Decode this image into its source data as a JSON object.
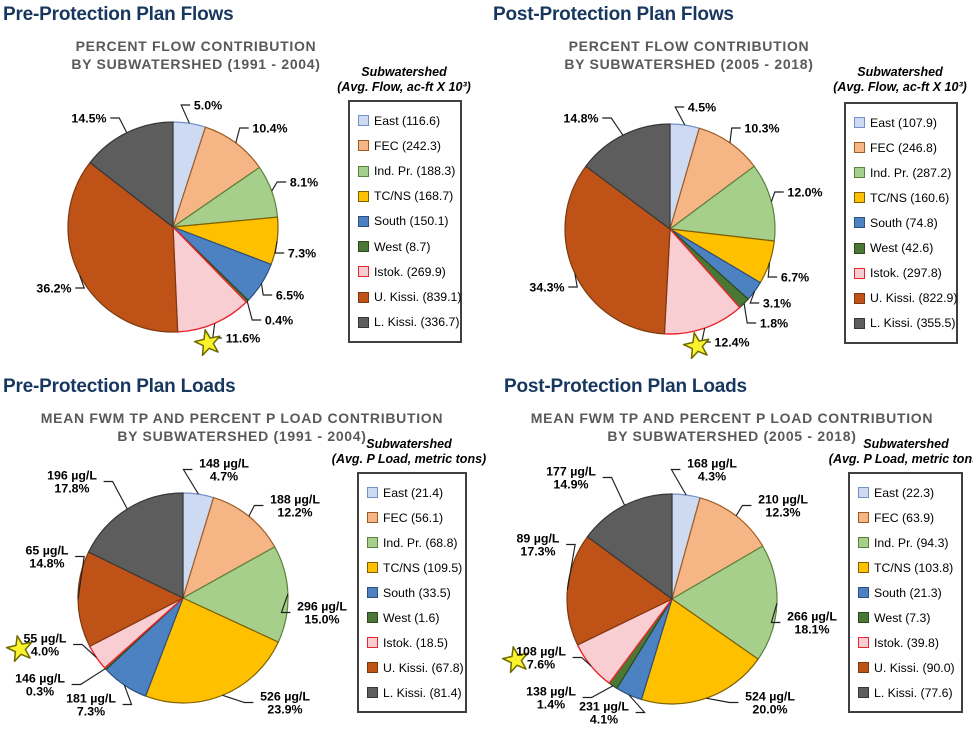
{
  "colors": {
    "background": "#FFFFFF",
    "heading": "#17375E",
    "chart_title": "#595959",
    "data_label": "#000000",
    "leader_line": "#1F1F1F",
    "legend_border": "#3F3F3F",
    "star": {
      "fill": "#FBF22E",
      "stroke": "#6E6A00"
    },
    "palette": {
      "East": {
        "fill": "#CDDAF2",
        "stroke": "#7490C9"
      },
      "FEC": {
        "fill": "#F5B585",
        "stroke": "#9E5B21"
      },
      "Ind. Pr.": {
        "fill": "#A7CF8C",
        "stroke": "#5A8239"
      },
      "TC/NS": {
        "fill": "#FFC000",
        "stroke": "#7F6000"
      },
      "South": {
        "fill": "#4C81C2",
        "stroke": "#2D4E7E"
      },
      "West": {
        "fill": "#4B7735",
        "stroke": "#2C4A1D"
      },
      "Istok.": {
        "fill": "#F9CED2",
        "stroke": "#E8262B"
      },
      "U. Kissi.": {
        "fill": "#BF5317",
        "stroke": "#7A3A10"
      },
      "L. Kissi.": {
        "fill": "#5D5D5D",
        "stroke": "#373737"
      }
    }
  },
  "chart_data": [
    {
      "type": "pie",
      "heading": "Pre-Protection Plan Flows",
      "title_lines": [
        "PERCENT FLOW CONTRIBUTION",
        "BY SUBWATERSHED (1991 - 2004)"
      ],
      "legend_title_lines": [
        "Subwatershed",
        "(Avg. Flow, ac-ft X 10³)"
      ],
      "legend_position": "right",
      "starred_slice": "Istok.",
      "slices": [
        {
          "name": "East",
          "legend_value": "116.6",
          "percent": 5.0,
          "label_lines": [
            "5.0%"
          ]
        },
        {
          "name": "FEC",
          "legend_value": "242.3",
          "percent": 10.4,
          "label_lines": [
            "10.4%"
          ]
        },
        {
          "name": "Ind. Pr.",
          "legend_value": "188.3",
          "percent": 8.1,
          "label_lines": [
            "8.1%"
          ]
        },
        {
          "name": "TC/NS",
          "legend_value": "168.7",
          "percent": 7.3,
          "label_lines": [
            "7.3%"
          ]
        },
        {
          "name": "South",
          "legend_value": "150.1",
          "percent": 6.5,
          "label_lines": [
            "6.5%"
          ]
        },
        {
          "name": "West",
          "legend_value": "8.7",
          "percent": 0.4,
          "label_lines": [
            "0.4%"
          ]
        },
        {
          "name": "Istok.",
          "legend_value": "269.9",
          "percent": 11.6,
          "label_lines": [
            "11.6%"
          ]
        },
        {
          "name": "U. Kissi.",
          "legend_value": "839.1",
          "percent": 36.2,
          "label_lines": [
            "36.2%"
          ]
        },
        {
          "name": "L. Kissi.",
          "legend_value": "336.7",
          "percent": 14.5,
          "label_lines": [
            "14.5%"
          ]
        }
      ]
    },
    {
      "type": "pie",
      "heading": "Post-Protection Plan Flows",
      "title_lines": [
        "PERCENT FLOW CONTRIBUTION",
        "BY SUBWATERSHED (2005 - 2018)"
      ],
      "legend_title_lines": [
        "Subwatershed",
        "(Avg. Flow, ac-ft X 10³)"
      ],
      "legend_position": "right",
      "starred_slice": "Istok.",
      "slices": [
        {
          "name": "East",
          "legend_value": "107.9",
          "percent": 4.5,
          "label_lines": [
            "4.5%"
          ]
        },
        {
          "name": "FEC",
          "legend_value": "246.8",
          "percent": 10.3,
          "label_lines": [
            "10.3%"
          ]
        },
        {
          "name": "Ind. Pr.",
          "legend_value": "287.2",
          "percent": 12.0,
          "label_lines": [
            "12.0%"
          ]
        },
        {
          "name": "TC/NS",
          "legend_value": "160.6",
          "percent": 6.7,
          "label_lines": [
            "6.7%"
          ]
        },
        {
          "name": "South",
          "legend_value": "74.8",
          "percent": 3.1,
          "label_lines": [
            "3.1%"
          ]
        },
        {
          "name": "West",
          "legend_value": "42.6",
          "percent": 1.8,
          "label_lines": [
            "1.8%"
          ]
        },
        {
          "name": "Istok.",
          "legend_value": "297.8",
          "percent": 12.4,
          "label_lines": [
            "12.4%"
          ]
        },
        {
          "name": "U. Kissi.",
          "legend_value": "822.9",
          "percent": 34.3,
          "label_lines": [
            "34.3%"
          ]
        },
        {
          "name": "L. Kissi.",
          "legend_value": "355.5",
          "percent": 14.8,
          "label_lines": [
            "14.8%"
          ]
        }
      ]
    },
    {
      "type": "pie",
      "heading": "Pre-Protection Plan Loads",
      "title_lines": [
        "MEAN FWM TP AND PERCENT P LOAD CONTRIBUTION",
        "BY SUBWATERSHED (1991 - 2004)"
      ],
      "legend_title_lines": [
        "Subwatershed",
        "(Avg. P Load, metric tons)"
      ],
      "legend_position": "right",
      "starred_slice": "Istok.",
      "slices": [
        {
          "name": "East",
          "legend_value": "21.4",
          "percent": 4.7,
          "label_lines": [
            "148 µg/L",
            "4.7%"
          ]
        },
        {
          "name": "FEC",
          "legend_value": "56.1",
          "percent": 12.2,
          "label_lines": [
            "188 µg/L",
            "12.2%"
          ]
        },
        {
          "name": "Ind. Pr.",
          "legend_value": "68.8",
          "percent": 15.0,
          "label_lines": [
            "296 µg/L",
            "15.0%"
          ]
        },
        {
          "name": "TC/NS",
          "legend_value": "109.5",
          "percent": 23.9,
          "label_lines": [
            "526 µg/L",
            "23.9%"
          ]
        },
        {
          "name": "South",
          "legend_value": "33.5",
          "percent": 7.3,
          "label_lines": [
            "181 µg/L",
            "7.3%"
          ]
        },
        {
          "name": "West",
          "legend_value": "1.6",
          "percent": 0.3,
          "label_lines": [
            "146 µg/L",
            "0.3%"
          ]
        },
        {
          "name": "Istok.",
          "legend_value": "18.5",
          "percent": 4.0,
          "label_lines": [
            "55 µg/L",
            "4.0%"
          ]
        },
        {
          "name": "U. Kissi.",
          "legend_value": "67.8",
          "percent": 14.8,
          "label_lines": [
            "65 µg/L",
            "14.8%"
          ]
        },
        {
          "name": "L. Kissi.",
          "legend_value": "81.4",
          "percent": 17.8,
          "label_lines": [
            "196 µg/L",
            "17.8%"
          ]
        }
      ]
    },
    {
      "type": "pie",
      "heading": "Post-Protection Plan Loads",
      "title_lines": [
        "MEAN FWM TP AND PERCENT P LOAD CONTRIBUTION",
        "BY SUBWATERSHED (2005 - 2018)"
      ],
      "legend_title_lines": [
        "Subwatershed",
        "(Avg. P Load, metric tons)"
      ],
      "legend_position": "right",
      "starred_slice": "Istok.",
      "slices": [
        {
          "name": "East",
          "legend_value": "22.3",
          "percent": 4.3,
          "label_lines": [
            "168 µg/L",
            "4.3%"
          ]
        },
        {
          "name": "FEC",
          "legend_value": "63.9",
          "percent": 12.3,
          "label_lines": [
            "210 µg/L",
            "12.3%"
          ]
        },
        {
          "name": "Ind. Pr.",
          "legend_value": "94.3",
          "percent": 18.1,
          "label_lines": [
            "266 µg/L",
            "18.1%"
          ]
        },
        {
          "name": "TC/NS",
          "legend_value": "103.8",
          "percent": 20.0,
          "label_lines": [
            "524 µg/L",
            "20.0%"
          ]
        },
        {
          "name": "South",
          "legend_value": "21.3",
          "percent": 4.1,
          "label_lines": [
            "231 µg/L",
            "4.1%"
          ]
        },
        {
          "name": "West",
          "legend_value": "7.3",
          "percent": 1.4,
          "label_lines": [
            "138 µg/L",
            "1.4%"
          ]
        },
        {
          "name": "Istok.",
          "legend_value": "39.8",
          "percent": 7.6,
          "label_lines": [
            "108 µg/L",
            "7.6%"
          ]
        },
        {
          "name": "U. Kissi.",
          "legend_value": "90.0",
          "percent": 17.3,
          "label_lines": [
            "89 µg/L",
            "17.3%"
          ]
        },
        {
          "name": "L. Kissi.",
          "legend_value": "77.6",
          "percent": 14.9,
          "label_lines": [
            "177 µg/L",
            "14.9%"
          ]
        }
      ]
    }
  ]
}
